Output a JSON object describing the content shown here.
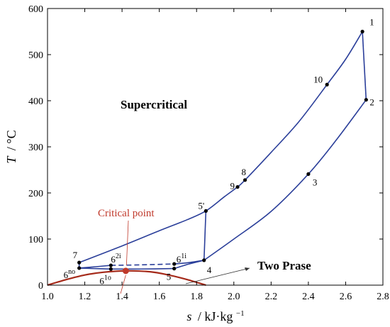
{
  "chart_data": {
    "type": "line",
    "xlim": [
      1.0,
      2.8
    ],
    "ylim": [
      0,
      600
    ],
    "xticks": [
      1.0,
      1.2,
      1.4,
      1.6,
      1.8,
      2.0,
      2.2,
      2.4,
      2.6,
      2.8
    ],
    "yticks": [
      0,
      100,
      200,
      300,
      400,
      500,
      600
    ],
    "xtick_labels": [
      "1.0",
      "1.2",
      "1.4",
      "1.6",
      "1.8",
      "2.0",
      "2.2",
      "2.4",
      "2.6",
      "2.8"
    ],
    "ytick_labels": [
      "0",
      "100",
      "200",
      "300",
      "400",
      "500",
      "600"
    ],
    "grid": false,
    "colors": {
      "cycle": "#2b3f9a",
      "dome": "#a52a1a",
      "critical": "#c0392b",
      "arrow": "#c0392b",
      "points": "#000000"
    },
    "points": [
      {
        "label": "1",
        "s": 2.69,
        "T": 550
      },
      {
        "label": "10",
        "s": 2.5,
        "T": 435
      },
      {
        "label": "2",
        "s": 2.71,
        "T": 402
      },
      {
        "label": "3",
        "s": 2.4,
        "T": 241
      },
      {
        "label": "8",
        "s": 2.06,
        "T": 228
      },
      {
        "label": "9",
        "s": 2.02,
        "T": 213
      },
      {
        "label": "5'",
        "s": 1.85,
        "T": 161
      },
      {
        "label": "4",
        "s": 1.84,
        "T": 54
      },
      {
        "label": "6",
        "sup": "1i",
        "s": 1.68,
        "T": 46
      },
      {
        "label": "5",
        "s": 1.68,
        "T": 36
      },
      {
        "label": "6",
        "sup": "2i",
        "s": 1.34,
        "T": 43
      },
      {
        "label": "7",
        "s": 1.17,
        "T": 49
      },
      {
        "label": "6",
        "sup": "no",
        "s": 1.17,
        "T": 37
      },
      {
        "label": "6",
        "sup": "1o",
        "s": 1.34,
        "T": 35
      }
    ],
    "critical_point": {
      "s": 1.42,
      "T": 31
    },
    "series": [
      {
        "style": "solid",
        "points": [
          [
            1.17,
            49
          ],
          [
            1.4,
            85
          ],
          [
            1.6,
            118
          ],
          [
            1.75,
            142
          ],
          [
            1.85,
            161
          ],
          [
            1.95,
            192
          ],
          [
            2.02,
            213
          ],
          [
            2.06,
            228
          ],
          [
            2.2,
            288
          ],
          [
            2.35,
            355
          ],
          [
            2.5,
            435
          ],
          [
            2.6,
            490
          ],
          [
            2.69,
            550
          ]
        ]
      },
      {
        "style": "solid",
        "points": [
          [
            2.69,
            550
          ],
          [
            2.71,
            402
          ]
        ]
      },
      {
        "style": "solid",
        "points": [
          [
            2.71,
            402
          ],
          [
            2.55,
            315
          ],
          [
            2.4,
            241
          ],
          [
            2.2,
            160
          ],
          [
            2.0,
            100
          ],
          [
            1.84,
            54
          ]
        ]
      },
      {
        "style": "solid",
        "points": [
          [
            1.84,
            54
          ],
          [
            1.85,
            161
          ]
        ]
      },
      {
        "style": "solid",
        "points": [
          [
            1.84,
            54
          ],
          [
            1.76,
            46
          ],
          [
            1.68,
            36
          ]
        ]
      },
      {
        "style": "solid",
        "points": [
          [
            1.68,
            36
          ],
          [
            1.5,
            35
          ],
          [
            1.34,
            35
          ],
          [
            1.17,
            37
          ]
        ]
      },
      {
        "style": "solid",
        "points": [
          [
            1.17,
            37
          ],
          [
            1.17,
            49
          ]
        ]
      },
      {
        "style": "solid",
        "points": [
          [
            1.17,
            37
          ],
          [
            1.26,
            40
          ],
          [
            1.34,
            43
          ]
        ]
      },
      {
        "style": "dashed",
        "points": [
          [
            1.34,
            43
          ],
          [
            1.5,
            44
          ],
          [
            1.68,
            46
          ]
        ]
      },
      {
        "style": "solid",
        "points": [
          [
            1.68,
            46
          ],
          [
            1.76,
            49
          ],
          [
            1.84,
            54
          ]
        ]
      },
      {
        "style": "dome",
        "points": [
          [
            1.0,
            0
          ],
          [
            1.1,
            12
          ],
          [
            1.2,
            22
          ],
          [
            1.3,
            28
          ],
          [
            1.42,
            31
          ],
          [
            1.55,
            29
          ],
          [
            1.65,
            22
          ],
          [
            1.75,
            12
          ],
          [
            1.85,
            0
          ]
        ]
      }
    ],
    "annotations": {
      "supercritical": "Supercritical",
      "two_phase": "Two Prase",
      "critical_label": "Critical point"
    },
    "xlabel_var": "s",
    "xlabel_unit": "/ kJ·kg",
    "xlabel_sup": "−1",
    "ylabel_var": "T",
    "ylabel_unit": "/ °C"
  }
}
